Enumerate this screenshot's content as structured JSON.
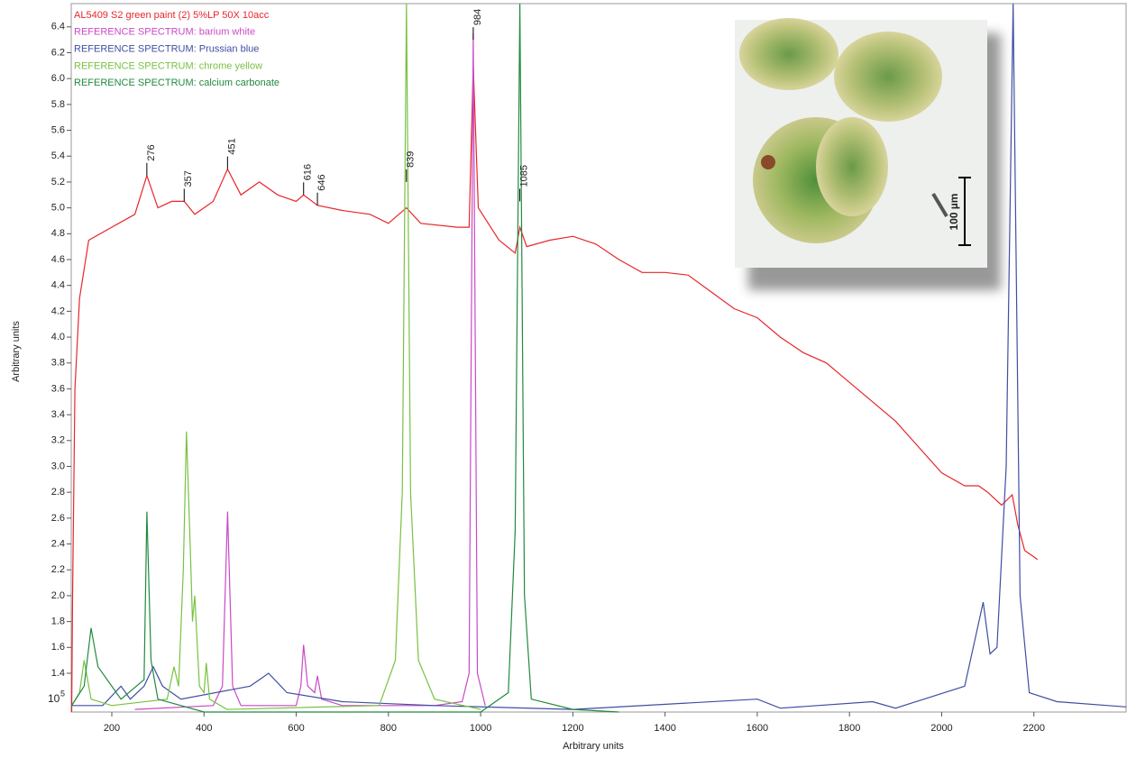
{
  "chart_data": {
    "type": "line",
    "x_label": "Arbitrary units",
    "y_label": "Arbitrary units",
    "y_multiplier": {
      "base": "10",
      "exponent": "5"
    },
    "xlim": [
      112,
      2400
    ],
    "ylim": [
      1.1,
      6.58
    ],
    "xticks": [
      200,
      400,
      600,
      800,
      1000,
      1200,
      1400,
      1600,
      1800,
      2000,
      2200
    ],
    "yticks": [
      1.4,
      1.6,
      1.8,
      {
        "value": 2.0,
        "label": "2.0"
      },
      2.2,
      2.4,
      2.6,
      2.8,
      {
        "value": 3.0,
        "label": "3.0"
      },
      3.2,
      3.4,
      3.6,
      3.8,
      {
        "value": 4.0,
        "label": "4.0"
      },
      4.2,
      4.4,
      4.6,
      4.8,
      {
        "value": 5.0,
        "label": "5.0"
      },
      5.2,
      5.4,
      5.6,
      5.8,
      {
        "value": 6.0,
        "label": "6.0"
      },
      6.2,
      6.4
    ],
    "series": [
      {
        "name": "AL5409 S2 green paint (2) 5%LP 50X 10acc",
        "color": "#e8262a",
        "x": [
          113,
          115,
          120,
          130,
          150,
          200,
          250,
          276,
          300,
          330,
          357,
          380,
          420,
          451,
          480,
          520,
          560,
          600,
          616,
          646,
          700,
          760,
          800,
          839,
          870,
          950,
          975,
          984,
          995,
          1040,
          1075,
          1085,
          1100,
          1150,
          1200,
          1250,
          1300,
          1350,
          1400,
          1450,
          1500,
          1550,
          1600,
          1650,
          1700,
          1750,
          1800,
          1850,
          1900,
          1950,
          2000,
          2050,
          2080,
          2100,
          2130,
          2153,
          2165,
          2180,
          2208
        ],
        "values": [
          1.1,
          2.0,
          3.6,
          4.3,
          4.75,
          4.85,
          4.95,
          5.25,
          5.0,
          5.05,
          5.05,
          4.95,
          5.05,
          5.3,
          5.1,
          5.2,
          5.1,
          5.05,
          5.1,
          5.02,
          4.98,
          4.95,
          4.88,
          5.0,
          4.88,
          4.85,
          4.85,
          6.1,
          5.0,
          4.75,
          4.65,
          4.85,
          4.7,
          4.75,
          4.78,
          4.72,
          4.6,
          4.5,
          4.5,
          4.48,
          4.35,
          4.22,
          4.15,
          4.0,
          3.88,
          3.8,
          3.65,
          3.5,
          3.35,
          3.15,
          2.95,
          2.85,
          2.85,
          2.8,
          2.7,
          2.78,
          2.55,
          2.35,
          2.28
        ]
      },
      {
        "name": "REFERENCE SPECTRUM: barium white",
        "color": "#c94ac5",
        "x": [
          250,
          420,
          440,
          451,
          462,
          480,
          600,
          610,
          616,
          625,
          640,
          646,
          655,
          700,
          900,
          960,
          975,
          984,
          993,
          1010
        ],
        "values": [
          1.12,
          1.15,
          1.3,
          2.65,
          1.3,
          1.15,
          1.15,
          1.3,
          1.62,
          1.3,
          1.25,
          1.38,
          1.2,
          1.15,
          1.15,
          1.18,
          1.4,
          6.35,
          1.4,
          1.15
        ]
      },
      {
        "name": "REFERENCE SPECTRUM: Prussian blue",
        "color": "#3f4ea3",
        "x": [
          113,
          180,
          220,
          240,
          270,
          290,
          310,
          350,
          500,
          540,
          580,
          700,
          900,
          1200,
          1600,
          1650,
          1850,
          1900,
          2050,
          2090,
          2105,
          2120,
          2140,
          2155,
          2170,
          2190,
          2250,
          2400
        ],
        "values": [
          1.15,
          1.15,
          1.3,
          1.2,
          1.3,
          1.45,
          1.3,
          1.2,
          1.3,
          1.4,
          1.25,
          1.18,
          1.15,
          1.12,
          1.2,
          1.13,
          1.18,
          1.13,
          1.3,
          1.95,
          1.55,
          1.6,
          3.0,
          6.58,
          2.0,
          1.25,
          1.18,
          1.14
        ]
      },
      {
        "name": "REFERENCE SPECTRUM: chrome yellow",
        "color": "#7ac143",
        "x": [
          113,
          130,
          140,
          155,
          200,
          320,
          335,
          345,
          355,
          362,
          370,
          375,
          380,
          390,
          400,
          405,
          412,
          450,
          780,
          815,
          830,
          839,
          848,
          865,
          900,
          1000
        ],
        "values": [
          1.15,
          1.25,
          1.5,
          1.2,
          1.15,
          1.2,
          1.45,
          1.3,
          2.2,
          3.27,
          2.4,
          1.8,
          2.0,
          1.3,
          1.25,
          1.48,
          1.2,
          1.12,
          1.15,
          1.5,
          2.8,
          6.58,
          2.8,
          1.5,
          1.2,
          1.12
        ]
      },
      {
        "name": "REFERENCE SPECTRUM: calcium carbonate",
        "color": "#218a3e",
        "x": [
          113,
          140,
          155,
          170,
          220,
          270,
          276,
          285,
          300,
          400,
          1000,
          1060,
          1075,
          1085,
          1095,
          1110,
          1200,
          1300
        ],
        "values": [
          1.15,
          1.3,
          1.75,
          1.45,
          1.2,
          1.35,
          2.65,
          1.5,
          1.2,
          1.1,
          1.1,
          1.25,
          2.5,
          6.58,
          2.0,
          1.2,
          1.12,
          1.1
        ]
      }
    ],
    "peak_labels": [
      {
        "x": 276,
        "y": 5.25
      },
      {
        "x": 357,
        "y": 5.05
      },
      {
        "x": 451,
        "y": 5.3
      },
      {
        "x": 616,
        "y": 5.1
      },
      {
        "x": 646,
        "y": 5.02
      },
      {
        "x": 839,
        "y": 5.2
      },
      {
        "x": 984,
        "y": 6.3
      },
      {
        "x": 1085,
        "y": 5.05
      }
    ],
    "inset": {
      "scale_bar": "100 µm"
    }
  }
}
